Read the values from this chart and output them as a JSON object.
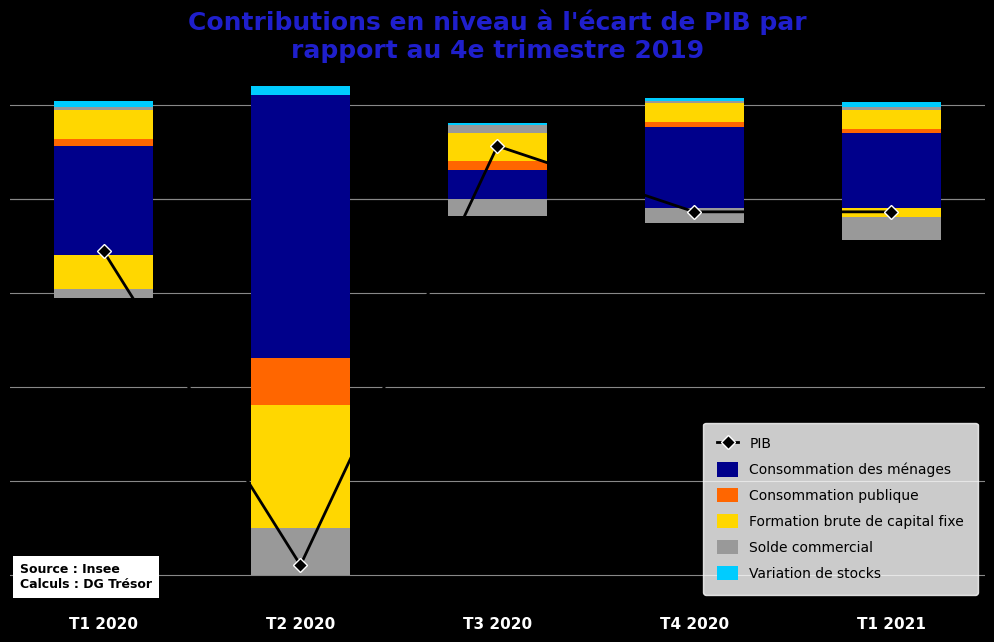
{
  "title": "Contributions en niveau à l'écart de PIB par\nrapport au 4e trimestre 2019",
  "title_color": "#1F1FCC",
  "categories": [
    "T1 2020",
    "T2 2020",
    "T3 2020",
    "T4 2020",
    "T1 2021"
  ],
  "bar_width": 0.5,
  "colors": {
    "menages": "#00008B",
    "publique": "#FF6600",
    "fbcf": "#FFD700",
    "solde": "#999999",
    "stocks": "#00CCFF"
  },
  "labels": {
    "menages": "Consommation des ménages",
    "publique": "Consommation publique",
    "fbcf": "Formation brute de capital fixe",
    "solde": "Solde commercial",
    "stocks": "Variation de stocks"
  },
  "pos_data": {
    "menages": [
      2.8,
      5.5,
      1.5,
      3.8,
      3.5
    ],
    "publique": [
      0.4,
      0.0,
      0.5,
      0.3,
      0.2
    ],
    "fbcf": [
      1.5,
      0.0,
      1.5,
      1.0,
      1.0
    ],
    "solde": [
      0.2,
      0.0,
      0.4,
      0.1,
      0.2
    ],
    "stocks": [
      0.3,
      0.5,
      0.1,
      0.15,
      0.25
    ]
  },
  "neg_data": {
    "menages": [
      -3.0,
      -8.5,
      0.0,
      -0.5,
      -0.5
    ],
    "publique": [
      0.0,
      -2.5,
      0.0,
      0.0,
      0.0
    ],
    "fbcf": [
      -1.8,
      -6.5,
      0.0,
      0.0,
      -0.5
    ],
    "solde": [
      -0.5,
      -2.5,
      -0.9,
      -0.8,
      -1.2
    ],
    "stocks": [
      0.0,
      0.0,
      0.0,
      0.0,
      0.0
    ]
  },
  "pib_values": [
    -2.8,
    -19.5,
    2.8,
    -0.7,
    -0.7
  ],
  "ylim": [
    -22,
    6
  ],
  "yticks": [
    -20,
    -15,
    -10,
    -5,
    0,
    5
  ],
  "figsize": [
    60.99,
    39.83
  ],
  "dpi": 100,
  "background_color": "#000000",
  "grid_color": "#888888",
  "text_color": "#FFFFFF",
  "source_text": "Source : Insee\nCalculs : DG Trésor"
}
